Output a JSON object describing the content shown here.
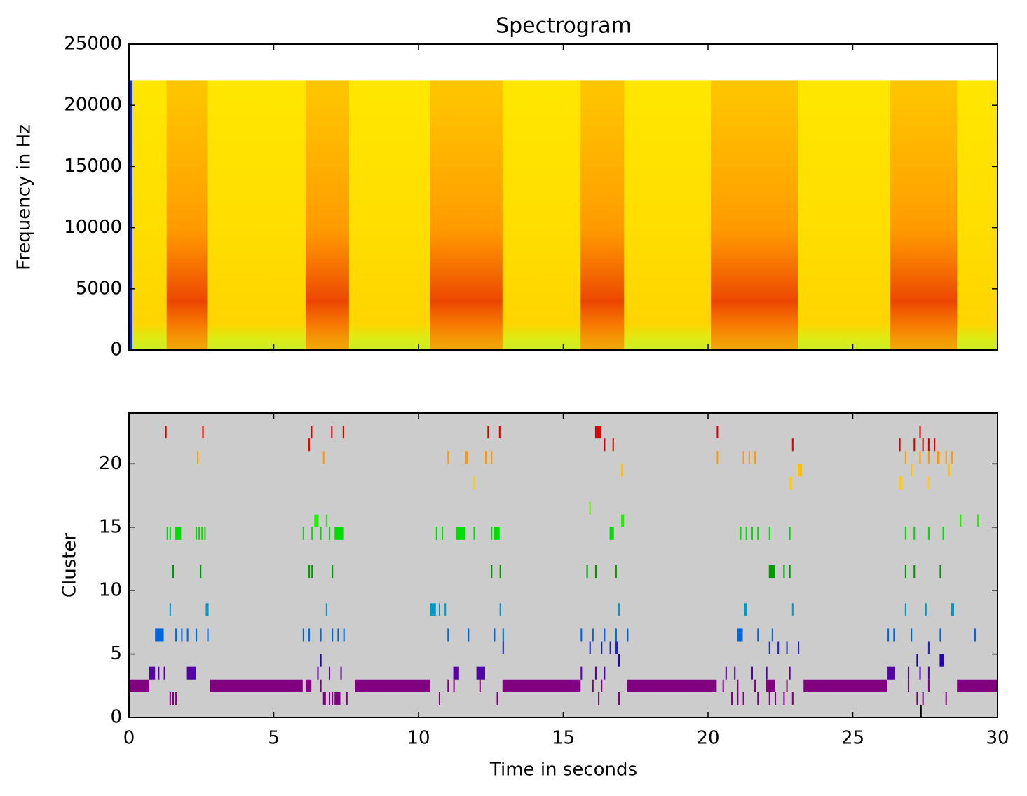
{
  "chart_data": [
    {
      "type": "spectrogram",
      "title": "Spectrogram",
      "y_label": "Frequency in Hz",
      "xlim": [
        0,
        30
      ],
      "ylim": [
        0,
        25000
      ],
      "yticks": [
        0,
        5000,
        10000,
        15000,
        20000,
        25000
      ],
      "fmax": 22050,
      "background_color": "#ffe600",
      "bout_color": "#ff9a00",
      "bouts": [
        [
          1.3,
          2.7
        ],
        [
          6.1,
          7.6
        ],
        [
          10.4,
          12.9
        ],
        [
          15.6,
          17.1
        ],
        [
          20.1,
          23.1
        ],
        [
          26.3,
          28.6
        ]
      ]
    },
    {
      "type": "raster",
      "y_label": "Cluster",
      "x_label": "Time in seconds",
      "xlim": [
        0,
        30
      ],
      "ylim": [
        0,
        24
      ],
      "xticks": [
        0,
        5,
        10,
        15,
        20,
        25,
        30
      ],
      "yticks": [
        0,
        5,
        10,
        15,
        20
      ],
      "background_color": "#cccccc",
      "rows": [
        {
          "cluster": 22,
          "color": "#e00000",
          "events": [
            [
              1.25,
              1.3
            ],
            [
              2.53,
              2.58
            ],
            [
              6.28,
              6.33
            ],
            [
              6.98,
              7.03
            ],
            [
              7.38,
              7.43
            ],
            [
              12.38,
              12.43
            ],
            [
              12.78,
              12.83
            ],
            [
              16.1,
              16.3
            ],
            [
              20.3,
              20.35
            ],
            [
              27.3,
              27.35
            ]
          ]
        },
        {
          "cluster": 21,
          "color": "#e00000",
          "events": [
            [
              6.2,
              6.25
            ],
            [
              16.4,
              16.45
            ],
            [
              16.7,
              16.75
            ],
            [
              22.9,
              22.95
            ],
            [
              26.6,
              26.65
            ],
            [
              27.1,
              27.15
            ],
            [
              27.4,
              27.45
            ],
            [
              27.6,
              27.65
            ],
            [
              27.8,
              27.85
            ]
          ]
        },
        {
          "cluster": 20,
          "color": "#ff9900",
          "events": [
            [
              2.35,
              2.4
            ],
            [
              6.7,
              6.75
            ],
            [
              11.0,
              11.05
            ],
            [
              11.6,
              11.7
            ],
            [
              12.3,
              12.35
            ],
            [
              12.5,
              12.55
            ],
            [
              20.3,
              20.35
            ],
            [
              21.2,
              21.25
            ],
            [
              21.4,
              21.45
            ],
            [
              21.6,
              21.65
            ],
            [
              26.8,
              26.85
            ],
            [
              27.3,
              27.35
            ],
            [
              27.6,
              27.65
            ],
            [
              27.9,
              28.0
            ],
            [
              28.2,
              28.25
            ],
            [
              28.4,
              28.45
            ]
          ]
        },
        {
          "cluster": 19,
          "color": "#ffc000",
          "events": [
            [
              17.0,
              17.05
            ],
            [
              23.1,
              23.25
            ],
            [
              27.0,
              27.05
            ],
            [
              28.3,
              28.35
            ]
          ]
        },
        {
          "cluster": 18,
          "color": "#ffd000",
          "events": [
            [
              11.9,
              11.95
            ],
            [
              22.8,
              22.9
            ],
            [
              26.6,
              26.7
            ],
            [
              27.6,
              27.65
            ]
          ]
        },
        {
          "cluster": 16,
          "color": "#66ee00",
          "events": [
            [
              15.9,
              15.95
            ]
          ]
        },
        {
          "cluster": 15,
          "color": "#22ee00",
          "events": [
            [
              6.4,
              6.55
            ],
            [
              6.8,
              6.85
            ],
            [
              17.0,
              17.1
            ],
            [
              28.7,
              28.75
            ],
            [
              29.3,
              29.35
            ]
          ]
        },
        {
          "cluster": 14,
          "color": "#00dd00",
          "events": [
            [
              1.3,
              1.35
            ],
            [
              1.4,
              1.45
            ],
            [
              1.6,
              1.8
            ],
            [
              2.3,
              2.35
            ],
            [
              2.4,
              2.45
            ],
            [
              2.5,
              2.55
            ],
            [
              2.6,
              2.65
            ],
            [
              6.0,
              6.05
            ],
            [
              6.3,
              6.35
            ],
            [
              6.6,
              6.65
            ],
            [
              6.9,
              6.95
            ],
            [
              7.1,
              7.4
            ],
            [
              10.6,
              10.65
            ],
            [
              10.8,
              10.85
            ],
            [
              11.3,
              11.6
            ],
            [
              11.9,
              11.95
            ],
            [
              12.5,
              12.55
            ],
            [
              12.6,
              12.8
            ],
            [
              16.6,
              16.75
            ],
            [
              21.1,
              21.15
            ],
            [
              21.3,
              21.35
            ],
            [
              21.5,
              21.55
            ],
            [
              21.7,
              21.75
            ],
            [
              22.1,
              22.15
            ],
            [
              22.8,
              22.85
            ],
            [
              26.8,
              26.85
            ],
            [
              27.1,
              27.15
            ],
            [
              27.6,
              27.65
            ],
            [
              28.1,
              28.15
            ]
          ]
        },
        {
          "cluster": 11,
          "color": "#009900",
          "events": [
            [
              1.5,
              1.55
            ],
            [
              2.45,
              2.5
            ],
            [
              6.2,
              6.25
            ],
            [
              6.3,
              6.35
            ],
            [
              7.0,
              7.05
            ],
            [
              12.5,
              12.55
            ],
            [
              12.8,
              12.85
            ],
            [
              15.8,
              15.85
            ],
            [
              16.1,
              16.15
            ],
            [
              16.8,
              16.85
            ],
            [
              22.1,
              22.3
            ],
            [
              22.6,
              22.65
            ],
            [
              22.8,
              22.85
            ],
            [
              26.8,
              26.85
            ],
            [
              27.1,
              27.15
            ],
            [
              28.0,
              28.05
            ]
          ]
        },
        {
          "cluster": 8,
          "color": "#0099cc",
          "events": [
            [
              1.4,
              1.45
            ],
            [
              2.65,
              2.75
            ],
            [
              6.8,
              6.85
            ],
            [
              10.4,
              10.6
            ],
            [
              10.7,
              10.75
            ],
            [
              10.9,
              10.95
            ],
            [
              12.8,
              12.85
            ],
            [
              16.9,
              16.95
            ],
            [
              21.25,
              21.35
            ],
            [
              22.9,
              22.95
            ],
            [
              26.8,
              26.85
            ],
            [
              27.5,
              27.55
            ],
            [
              28.4,
              28.5
            ]
          ]
        },
        {
          "cluster": 6,
          "color": "#0066dd",
          "events": [
            [
              0.9,
              1.2
            ],
            [
              1.6,
              1.65
            ],
            [
              1.8,
              1.85
            ],
            [
              2.0,
              2.05
            ],
            [
              2.3,
              2.35
            ],
            [
              2.7,
              2.75
            ],
            [
              6.0,
              6.05
            ],
            [
              6.2,
              6.25
            ],
            [
              6.6,
              6.65
            ],
            [
              7.0,
              7.05
            ],
            [
              7.2,
              7.25
            ],
            [
              7.4,
              7.45
            ],
            [
              11.0,
              11.05
            ],
            [
              11.7,
              11.75
            ],
            [
              12.6,
              12.65
            ],
            [
              12.9,
              12.95
            ],
            [
              15.6,
              15.65
            ],
            [
              16.0,
              16.05
            ],
            [
              16.4,
              16.45
            ],
            [
              16.8,
              16.85
            ],
            [
              17.2,
              17.25
            ],
            [
              21.0,
              21.2
            ],
            [
              21.7,
              21.75
            ],
            [
              22.2,
              22.25
            ],
            [
              26.2,
              26.25
            ],
            [
              26.4,
              26.45
            ],
            [
              27.0,
              27.05
            ],
            [
              28.0,
              28.05
            ],
            [
              29.2,
              29.25
            ]
          ]
        },
        {
          "cluster": 5,
          "color": "#2222cc",
          "events": [
            [
              12.9,
              12.95
            ],
            [
              15.9,
              15.95
            ],
            [
              16.3,
              16.35
            ],
            [
              16.6,
              16.65
            ],
            [
              16.8,
              16.9
            ],
            [
              22.1,
              22.15
            ],
            [
              22.4,
              22.45
            ],
            [
              22.7,
              22.75
            ],
            [
              23.1,
              23.15
            ],
            [
              27.6,
              27.65
            ]
          ]
        },
        {
          "cluster": 4,
          "color": "#2200bb",
          "events": [
            [
              6.6,
              6.65
            ],
            [
              16.9,
              16.95
            ],
            [
              27.2,
              27.25
            ],
            [
              28.0,
              28.15
            ]
          ]
        },
        {
          "cluster": 3,
          "color": "#5500aa",
          "events": [
            [
              0.7,
              0.9
            ],
            [
              1.0,
              1.05
            ],
            [
              1.2,
              1.25
            ],
            [
              2.0,
              2.3
            ],
            [
              6.5,
              6.55
            ],
            [
              6.9,
              6.95
            ],
            [
              7.3,
              7.35
            ],
            [
              11.2,
              11.4
            ],
            [
              12.0,
              12.3
            ],
            [
              15.6,
              15.65
            ],
            [
              16.1,
              16.15
            ],
            [
              16.4,
              16.45
            ],
            [
              20.6,
              20.65
            ],
            [
              20.9,
              20.95
            ],
            [
              21.5,
              21.55
            ],
            [
              22.0,
              22.05
            ],
            [
              22.8,
              22.85
            ],
            [
              26.2,
              26.45
            ],
            [
              26.9,
              26.95
            ],
            [
              27.3,
              27.35
            ],
            [
              27.6,
              27.65
            ]
          ]
        },
        {
          "cluster": 2,
          "color": "#800080",
          "events": [
            [
              0.0,
              0.7
            ],
            [
              2.8,
              6.0
            ],
            [
              6.1,
              6.3
            ],
            [
              6.6,
              6.65
            ],
            [
              7.8,
              10.4
            ],
            [
              11.0,
              11.05
            ],
            [
              11.2,
              11.25
            ],
            [
              12.1,
              12.15
            ],
            [
              12.9,
              15.6
            ],
            [
              16.0,
              16.05
            ],
            [
              16.3,
              16.35
            ],
            [
              17.2,
              20.3
            ],
            [
              20.5,
              20.55
            ],
            [
              21.0,
              21.05
            ],
            [
              21.6,
              21.65
            ],
            [
              22.0,
              22.3
            ],
            [
              22.7,
              22.75
            ],
            [
              23.3,
              26.2
            ],
            [
              26.9,
              26.95
            ],
            [
              27.6,
              27.65
            ],
            [
              28.6,
              30.0
            ]
          ]
        },
        {
          "cluster": 1,
          "color": "#800080",
          "events": [
            [
              1.4,
              1.45
            ],
            [
              1.5,
              1.55
            ],
            [
              1.6,
              1.65
            ],
            [
              6.7,
              6.8
            ],
            [
              6.9,
              6.95
            ],
            [
              7.0,
              7.05
            ],
            [
              7.1,
              7.3
            ],
            [
              7.5,
              7.55
            ],
            [
              10.7,
              10.75
            ],
            [
              12.7,
              12.75
            ],
            [
              16.2,
              16.25
            ],
            [
              16.9,
              16.95
            ],
            [
              20.8,
              20.85
            ],
            [
              21.0,
              21.05
            ],
            [
              21.2,
              21.25
            ],
            [
              21.7,
              21.75
            ],
            [
              22.1,
              22.15
            ],
            [
              22.3,
              22.35
            ],
            [
              22.6,
              22.65
            ],
            [
              22.9,
              22.95
            ],
            [
              27.2,
              27.25
            ],
            [
              27.4,
              27.45
            ],
            [
              28.2,
              28.25
            ]
          ]
        },
        {
          "cluster": 0,
          "color": "#000000",
          "events": [
            [
              27.33,
              27.38
            ]
          ]
        }
      ]
    }
  ]
}
